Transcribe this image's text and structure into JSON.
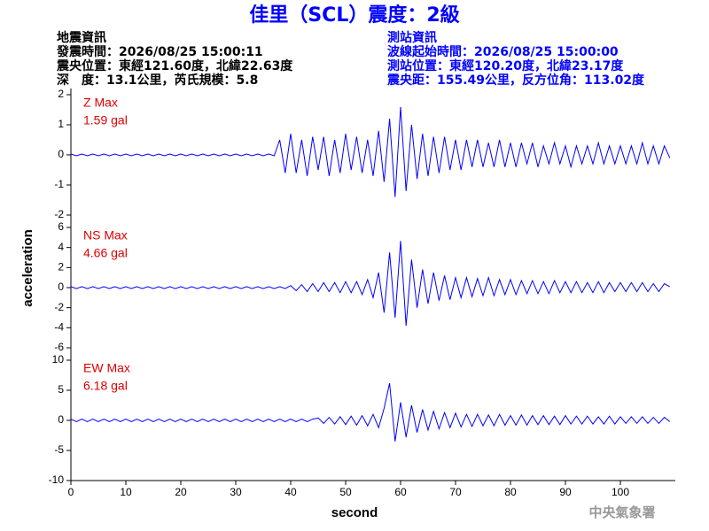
{
  "header": {
    "title": "佳里（SCL）震度：2級",
    "quake": [
      "地震資訊",
      "發震時間：2026/08/25 15:00:11",
      "震央位置：東經121.60度，北緯22.63度",
      "深　度：13.1公里，芮氏規模：5.8"
    ],
    "station": [
      "測站資訊",
      "波線起始時間：2026/08/25 15:00:00",
      "測站位置：東經120.20度，北緯23.17度",
      "震央距：155.49公里，反方位角：113.02度"
    ],
    "ylabel": "acceleration",
    "xlabel": "second",
    "credit": "中央氣象署"
  },
  "chart_data": [
    {
      "type": "line",
      "annotation": [
        "Z Max",
        "1.59 gal"
      ],
      "color": "#0000ff",
      "xlim": [
        0,
        110
      ],
      "ylim": [
        -2,
        2
      ],
      "yticks": [
        -2,
        -1,
        0,
        1,
        2
      ],
      "x": [
        0,
        1,
        2,
        3,
        4,
        5,
        6,
        7,
        8,
        9,
        10,
        11,
        12,
        13,
        14,
        15,
        16,
        17,
        18,
        19,
        20,
        21,
        22,
        23,
        24,
        25,
        26,
        27,
        28,
        29,
        30,
        31,
        32,
        33,
        34,
        35,
        36,
        37,
        38,
        39,
        40,
        41,
        42,
        43,
        44,
        45,
        46,
        47,
        48,
        49,
        50,
        51,
        52,
        53,
        54,
        55,
        56,
        57,
        58,
        59,
        60,
        61,
        62,
        63,
        64,
        65,
        66,
        67,
        68,
        69,
        70,
        71,
        72,
        73,
        74,
        75,
        76,
        77,
        78,
        79,
        80,
        81,
        82,
        83,
        84,
        85,
        86,
        87,
        88,
        89,
        90,
        91,
        92,
        93,
        94,
        95,
        96,
        97,
        98,
        99,
        100,
        101,
        102,
        103,
        104,
        105,
        106,
        107,
        108,
        109
      ],
      "values": [
        0.03,
        -0.03,
        0.03,
        -0.03,
        0.03,
        -0.03,
        0.03,
        -0.03,
        0.03,
        -0.03,
        0.03,
        -0.03,
        0.03,
        -0.03,
        0.03,
        -0.03,
        0.03,
        -0.03,
        0.03,
        -0.03,
        0.03,
        -0.03,
        0.03,
        -0.03,
        0.03,
        -0.03,
        0.03,
        -0.03,
        0.03,
        -0.03,
        0.03,
        -0.03,
        0.03,
        -0.03,
        0.03,
        -0.03,
        0.03,
        -0.03,
        0.5,
        -0.6,
        0.7,
        -0.6,
        0.5,
        -0.7,
        0.6,
        -0.5,
        0.6,
        -0.7,
        0.5,
        -0.6,
        0.7,
        -0.5,
        0.6,
        -0.6,
        0.5,
        -0.7,
        0.8,
        -0.9,
        1.2,
        -1.4,
        1.59,
        -1.2,
        1.0,
        -0.8,
        0.7,
        -0.7,
        0.6,
        -0.6,
        0.6,
        -0.5,
        0.5,
        -0.5,
        0.5,
        -0.4,
        0.5,
        -0.4,
        0.4,
        -0.4,
        0.5,
        -0.4,
        0.4,
        -0.4,
        0.4,
        -0.3,
        0.4,
        -0.4,
        0.3,
        -0.3,
        0.4,
        -0.3,
        0.3,
        -0.4,
        0.3,
        -0.3,
        0.3,
        -0.3,
        0.4,
        -0.3,
        0.3,
        -0.3,
        0.3,
        -0.3,
        0.3,
        -0.3,
        0.4,
        -0.3,
        0.3,
        -0.3,
        0.3,
        -0.1
      ]
    },
    {
      "type": "line",
      "annotation": [
        "NS Max",
        "4.66 gal"
      ],
      "color": "#0000ff",
      "xlim": [
        0,
        110
      ],
      "ylim": [
        -6,
        6
      ],
      "yticks": [
        -6,
        -4,
        -2,
        0,
        2,
        4,
        6
      ],
      "x": [
        0,
        1,
        2,
        3,
        4,
        5,
        6,
        7,
        8,
        9,
        10,
        11,
        12,
        13,
        14,
        15,
        16,
        17,
        18,
        19,
        20,
        21,
        22,
        23,
        24,
        25,
        26,
        27,
        28,
        29,
        30,
        31,
        32,
        33,
        34,
        35,
        36,
        37,
        38,
        39,
        40,
        41,
        42,
        43,
        44,
        45,
        46,
        47,
        48,
        49,
        50,
        51,
        52,
        53,
        54,
        55,
        56,
        57,
        58,
        59,
        60,
        61,
        62,
        63,
        64,
        65,
        66,
        67,
        68,
        69,
        70,
        71,
        72,
        73,
        74,
        75,
        76,
        77,
        78,
        79,
        80,
        81,
        82,
        83,
        84,
        85,
        86,
        87,
        88,
        89,
        90,
        91,
        92,
        93,
        94,
        95,
        96,
        97,
        98,
        99,
        100,
        101,
        102,
        103,
        104,
        105,
        106,
        107,
        108,
        109
      ],
      "values": [
        0.1,
        -0.1,
        0.1,
        -0.1,
        0.1,
        -0.1,
        0.1,
        -0.1,
        0.1,
        -0.1,
        0.1,
        -0.1,
        0.1,
        -0.1,
        0.1,
        -0.1,
        0.1,
        -0.1,
        0.1,
        -0.1,
        0.1,
        -0.1,
        0.1,
        -0.1,
        0.1,
        -0.1,
        0.1,
        -0.1,
        0.1,
        -0.1,
        0.1,
        -0.1,
        0.1,
        -0.1,
        0.1,
        -0.1,
        0.1,
        -0.1,
        0.1,
        -0.1,
        0.2,
        -0.3,
        0.3,
        -0.4,
        0.4,
        -0.4,
        0.5,
        -0.4,
        0.5,
        -0.5,
        0.6,
        -0.5,
        0.6,
        -0.7,
        0.8,
        -1.0,
        1.5,
        -2.5,
        3.5,
        -3.0,
        4.66,
        -3.8,
        2.8,
        -2.0,
        1.8,
        -1.6,
        1.5,
        -1.3,
        1.2,
        -1.2,
        1.0,
        -1.0,
        1.0,
        -0.9,
        0.9,
        -0.8,
        1.0,
        -0.8,
        0.8,
        -0.7,
        0.8,
        -0.7,
        0.7,
        -0.6,
        0.7,
        -0.6,
        0.6,
        -0.6,
        0.7,
        -0.5,
        0.6,
        -0.5,
        0.6,
        -0.5,
        0.5,
        -0.5,
        0.6,
        -0.5,
        0.5,
        -0.4,
        0.5,
        -0.4,
        0.5,
        -0.4,
        0.5,
        -0.4,
        0.4,
        -0.4,
        0.4,
        0.1
      ]
    },
    {
      "type": "line",
      "annotation": [
        "EW Max",
        "6.18 gal"
      ],
      "color": "#0000ff",
      "xlim": [
        0,
        110
      ],
      "ylim": [
        -10,
        10
      ],
      "yticks": [
        -10,
        -5,
        0,
        5,
        10
      ],
      "xticks": [
        0,
        10,
        20,
        30,
        40,
        50,
        60,
        70,
        80,
        90,
        100
      ],
      "x": [
        0,
        1,
        2,
        3,
        4,
        5,
        6,
        7,
        8,
        9,
        10,
        11,
        12,
        13,
        14,
        15,
        16,
        17,
        18,
        19,
        20,
        21,
        22,
        23,
        24,
        25,
        26,
        27,
        28,
        29,
        30,
        31,
        32,
        33,
        34,
        35,
        36,
        37,
        38,
        39,
        40,
        41,
        42,
        43,
        44,
        45,
        46,
        47,
        48,
        49,
        50,
        51,
        52,
        53,
        54,
        55,
        56,
        57,
        58,
        59,
        60,
        61,
        62,
        63,
        64,
        65,
        66,
        67,
        68,
        69,
        70,
        71,
        72,
        73,
        74,
        75,
        76,
        77,
        78,
        79,
        80,
        81,
        82,
        83,
        84,
        85,
        86,
        87,
        88,
        89,
        90,
        91,
        92,
        93,
        94,
        95,
        96,
        97,
        98,
        99,
        100,
        101,
        102,
        103,
        104,
        105,
        106,
        107,
        108,
        109
      ],
      "values": [
        0.2,
        -0.2,
        0.2,
        -0.2,
        0.2,
        -0.2,
        0.2,
        -0.2,
        0.2,
        -0.2,
        0.2,
        -0.2,
        0.2,
        -0.2,
        0.2,
        -0.2,
        0.2,
        -0.2,
        0.2,
        -0.2,
        0.2,
        -0.2,
        0.2,
        -0.2,
        0.2,
        -0.2,
        0.2,
        -0.2,
        0.2,
        -0.2,
        0.2,
        -0.2,
        0.2,
        -0.2,
        0.2,
        -0.2,
        0.2,
        -0.2,
        0.2,
        -0.2,
        0.2,
        -0.2,
        0.2,
        -0.2,
        0.2,
        0.4,
        -0.5,
        0.5,
        -0.6,
        0.6,
        -0.7,
        0.7,
        -0.8,
        0.8,
        -0.9,
        1.0,
        -1.2,
        2.0,
        6.18,
        -3.5,
        3.0,
        -2.8,
        2.5,
        -2.0,
        1.8,
        -1.6,
        1.5,
        -1.4,
        1.3,
        -1.2,
        1.2,
        -1.1,
        1.0,
        -1.0,
        1.0,
        -0.9,
        0.9,
        -0.9,
        1.0,
        -0.8,
        0.8,
        -0.8,
        0.9,
        -0.8,
        0.8,
        -0.7,
        0.8,
        -0.7,
        0.7,
        -0.7,
        0.8,
        -0.6,
        0.7,
        -0.6,
        0.7,
        -0.6,
        0.6,
        -0.6,
        0.7,
        -0.6,
        0.6,
        -0.5,
        0.6,
        -0.5,
        0.6,
        -0.5,
        0.5,
        -0.5,
        0.5,
        -0.2
      ]
    }
  ]
}
